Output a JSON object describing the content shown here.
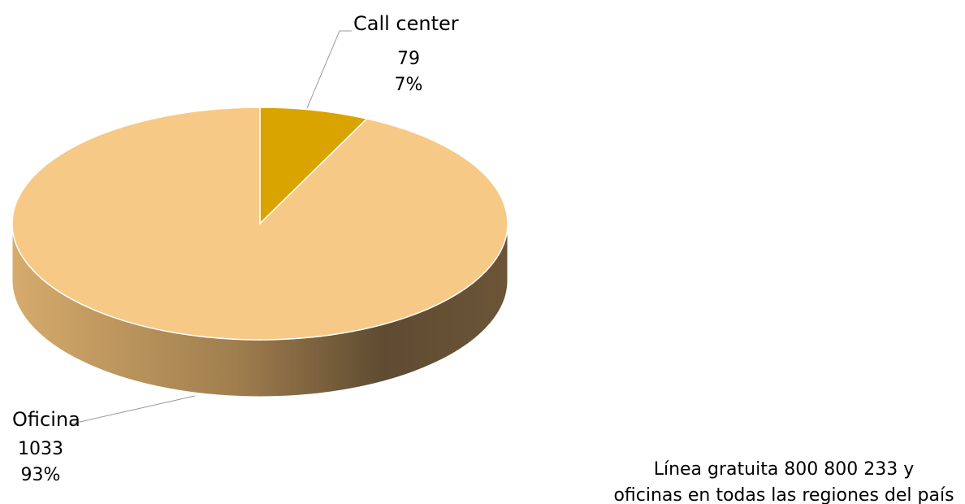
{
  "chart_data": {
    "type": "pie3d",
    "categories": [
      "Call center",
      "Oficina"
    ],
    "values": [
      79,
      1033
    ],
    "percentages": [
      7,
      93
    ],
    "percentage_labels": [
      "7%",
      "93%"
    ],
    "colors": [
      "#d9a400",
      "#f6c987"
    ],
    "note": [
      "Línea gratuita 800 800 233  y",
      "oficinas en todas las regiones del país"
    ]
  }
}
